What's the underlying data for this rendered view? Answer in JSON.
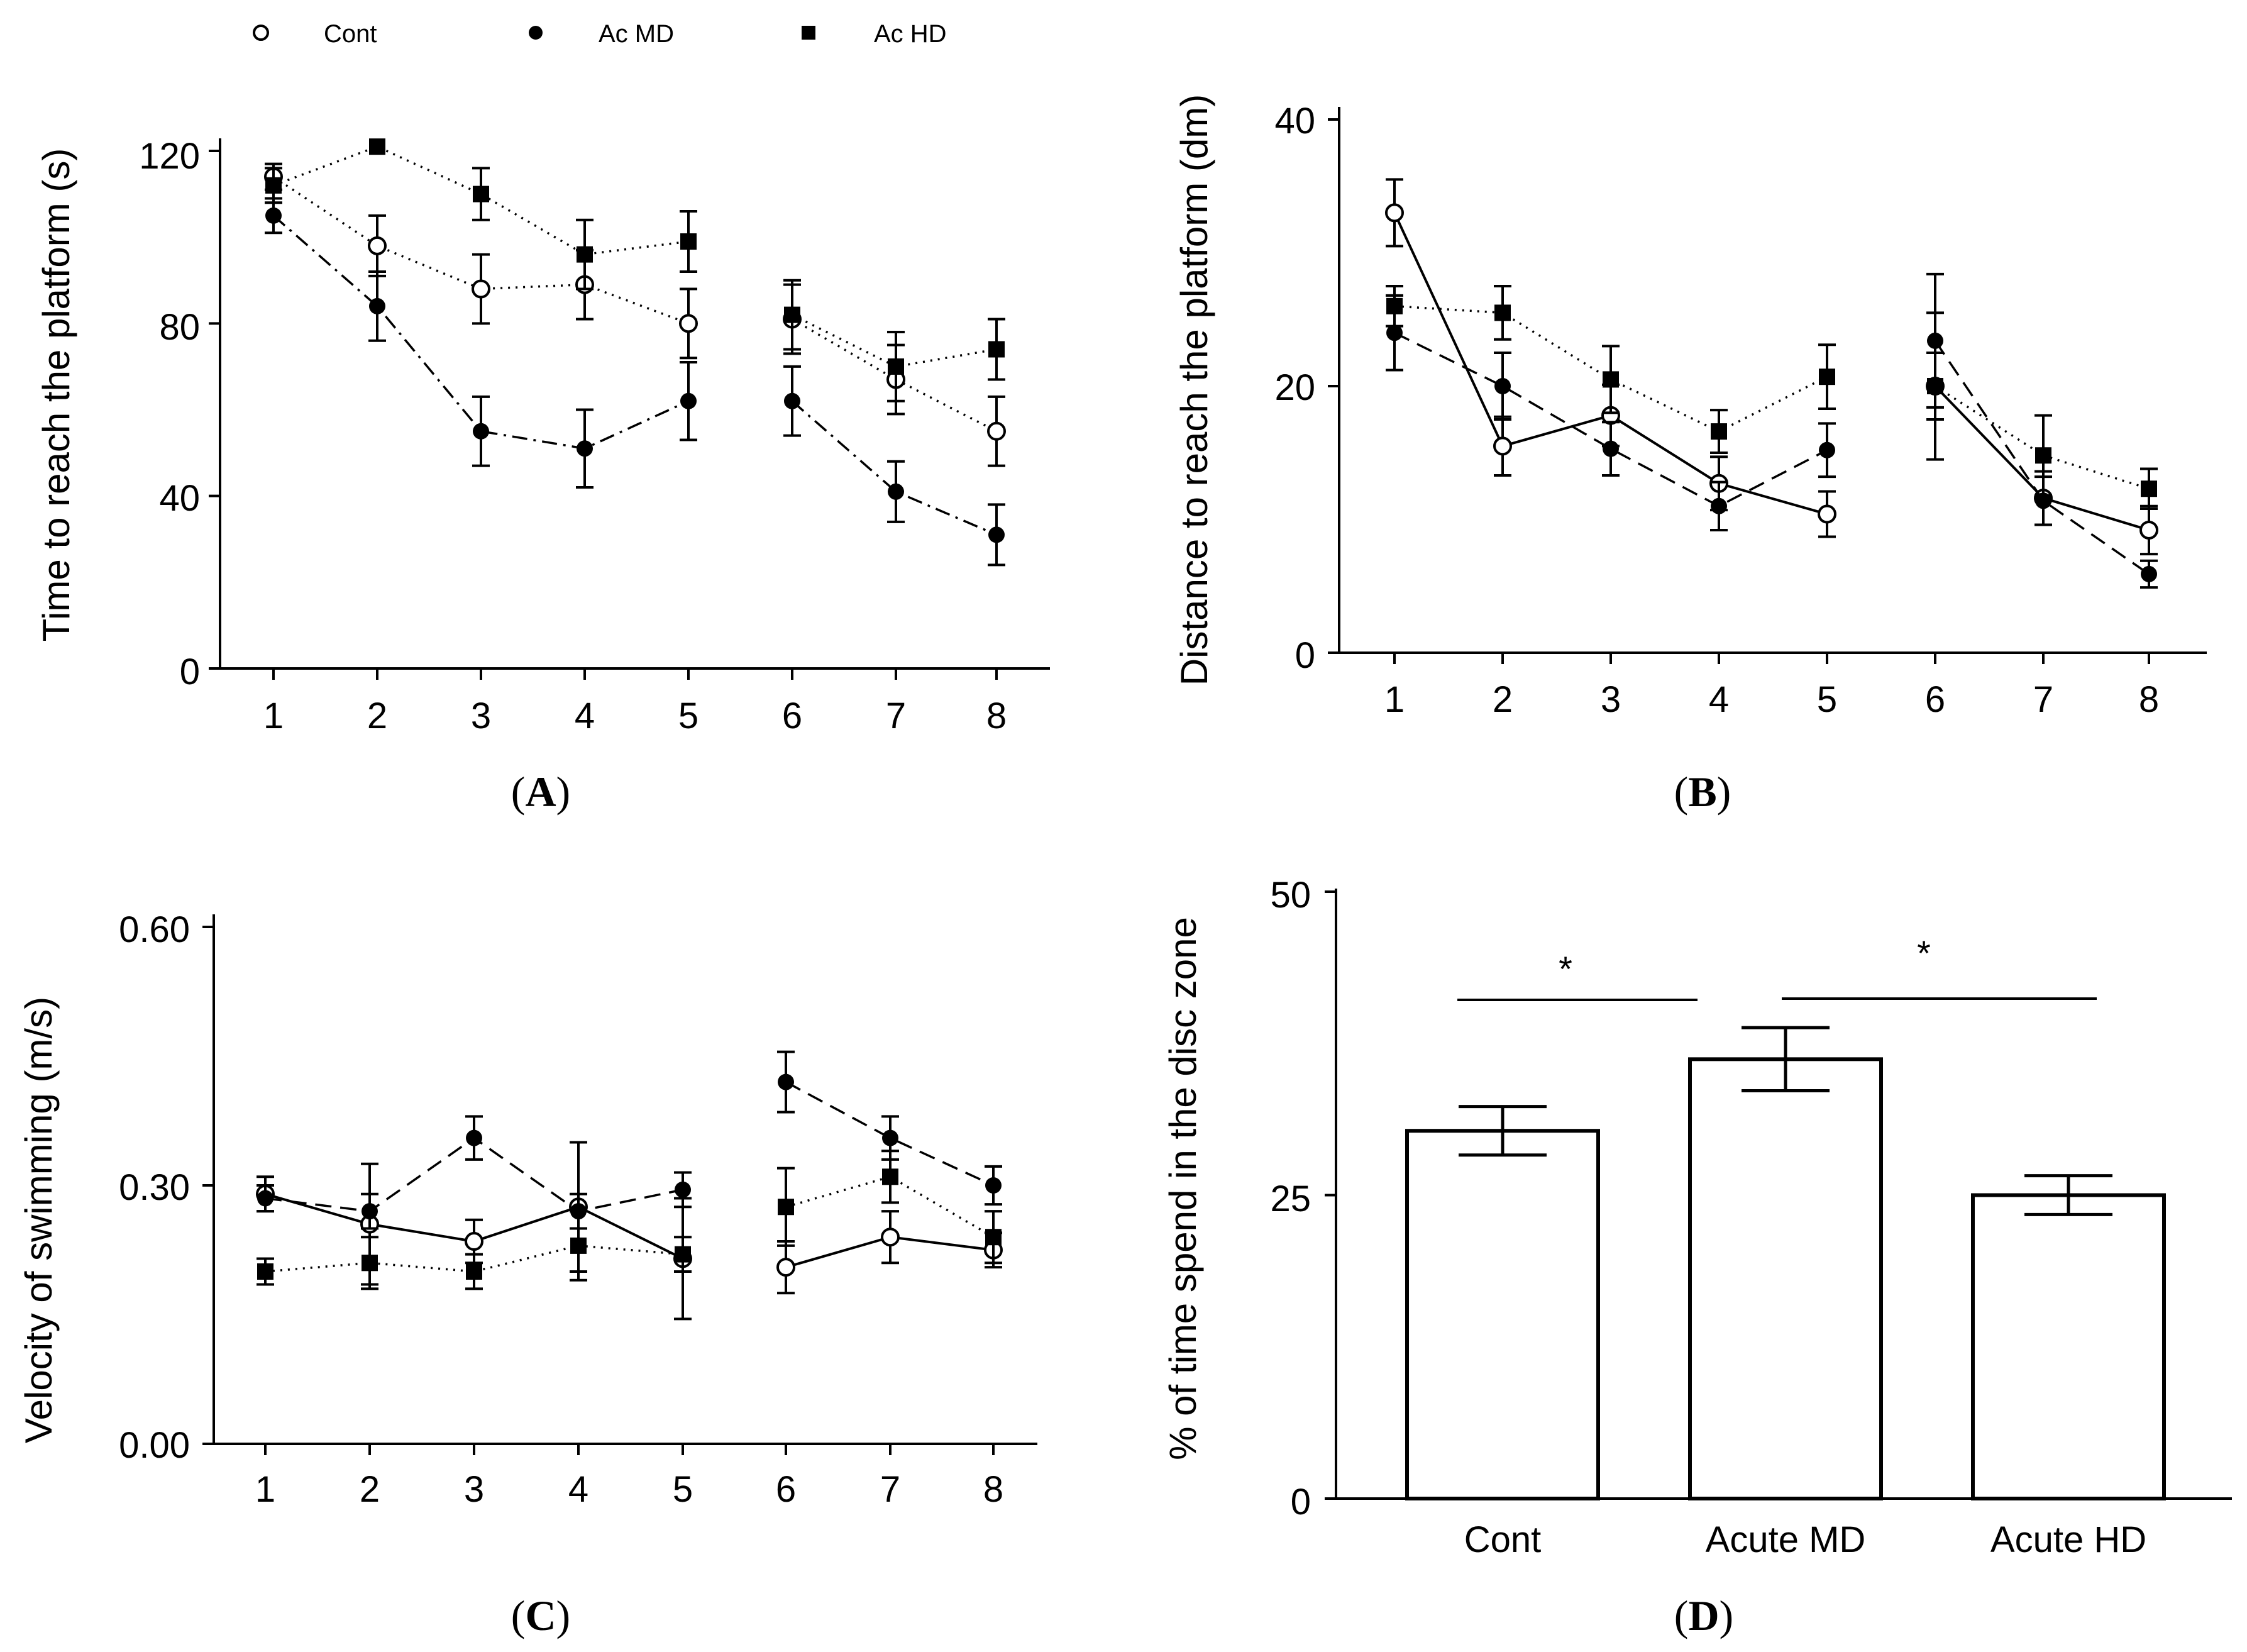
{
  "legend": [
    {
      "label": "Cont",
      "marker": "open-circle"
    },
    {
      "label": "Ac MD",
      "marker": "filled-circle"
    },
    {
      "label": "Ac HD",
      "marker": "filled-square"
    }
  ],
  "panel_labels": {
    "A": {
      "open": "(",
      "letter": "A",
      "close": ")"
    },
    "B": {
      "open": "(",
      "letter": "B",
      "close": ")"
    },
    "C": {
      "open": "(",
      "letter": "C",
      "close": ")"
    },
    "D": {
      "open": "(",
      "letter": "D",
      "close": ")"
    }
  },
  "chart_data": [
    {
      "panel": "A",
      "type": "line",
      "ylabel": "Time to reach the platform (s)",
      "xlabel": "",
      "ylim": [
        0,
        120
      ],
      "yticks": [
        "0",
        "40",
        "80",
        "120"
      ],
      "x": [
        "1",
        "2",
        "3",
        "4",
        "5",
        "6",
        "7",
        "8"
      ],
      "series": [
        {
          "name": "Cont",
          "marker": "open-circle",
          "line": "dotted",
          "values": [
            114,
            98,
            88,
            89,
            80,
            81,
            67,
            55
          ],
          "errors": [
            3,
            7,
            8,
            8,
            8,
            8,
            8,
            8
          ]
        },
        {
          "name": "Ac MD",
          "marker": "filled-circle",
          "line": "dashdot",
          "values": [
            105,
            84,
            55,
            51,
            62,
            62,
            41,
            31
          ],
          "errors": [
            4,
            8,
            8,
            9,
            9,
            8,
            7,
            7
          ]
        },
        {
          "name": "Ac HD",
          "marker": "filled-square",
          "line": "dotted",
          "values": [
            112,
            121,
            110,
            96,
            99,
            82,
            70,
            74
          ],
          "errors": [
            4,
            0,
            6,
            8,
            7,
            8,
            8,
            7
          ]
        }
      ]
    },
    {
      "panel": "B",
      "type": "line",
      "ylabel": "Distance to reach the platform (dm)",
      "xlabel": "",
      "ylim": [
        0,
        40
      ],
      "yticks": [
        "0",
        "20",
        "40"
      ],
      "x": [
        "1",
        "2",
        "3",
        "4",
        "5",
        "6",
        "7",
        "8"
      ],
      "series": [
        {
          "name": "Cont",
          "marker": "open-circle",
          "line": "solid",
          "values": [
            33,
            15.5,
            17.8,
            12.7,
            10.4,
            20,
            11.6,
            9.2
          ],
          "errors": [
            2.5,
            2.2,
            2.3,
            2,
            1.7,
            5.5,
            2,
            1.8
          ]
        },
        {
          "name": "Ac MD",
          "marker": "filled-circle",
          "line": "dashed",
          "values": [
            24,
            20,
            15.3,
            11,
            15.2,
            23.4,
            11.4,
            5.9
          ],
          "errors": [
            2.8,
            2.5,
            2,
            1.8,
            2,
            5,
            1.8,
            1
          ]
        },
        {
          "name": "Ac HD",
          "marker": "filled-square",
          "line": "dotted",
          "values": [
            26,
            25.5,
            20.5,
            16.6,
            20.7,
            20,
            14.8,
            12.3
          ],
          "errors": [
            1.5,
            2,
            2.5,
            1.6,
            2.4,
            2.5,
            3,
            1.5
          ]
        }
      ]
    },
    {
      "panel": "C",
      "type": "line",
      "ylabel": "Velocity of swimming (m/s)",
      "xlabel": "",
      "ylim": [
        0,
        0.6
      ],
      "yticks": [
        "0.00",
        "0.30",
        "0.60"
      ],
      "x": [
        "1",
        "2",
        "3",
        "4",
        "5",
        "6",
        "7",
        "8"
      ],
      "series": [
        {
          "name": "Cont",
          "marker": "open-circle",
          "line": "solid",
          "values": [
            0.29,
            0.255,
            0.235,
            0.275,
            0.215,
            0.205,
            0.24,
            0.225
          ],
          "errors": [
            0.02,
            0.07,
            0.025,
            0.075,
            0.07,
            0.03,
            0.03,
            0.02
          ]
        },
        {
          "name": "Ac MD",
          "marker": "filled-circle",
          "line": "dashed",
          "values": [
            0.285,
            0.27,
            0.355,
            0.27,
            0.295,
            0.42,
            0.355,
            0.3
          ],
          "errors": [
            0.015,
            0.02,
            0.025,
            0.02,
            0.02,
            0.035,
            0.025,
            0.022
          ]
        },
        {
          "name": "Ac HD",
          "marker": "filled-square",
          "line": "dotted",
          "values": [
            0.2,
            0.21,
            0.2,
            0.23,
            0.22,
            0.275,
            0.31,
            0.24
          ],
          "errors": [
            0.015,
            0.03,
            0.02,
            0.04,
            0.02,
            0.045,
            0.03,
            0.03
          ]
        }
      ]
    },
    {
      "panel": "D",
      "type": "bar",
      "ylabel": "% of time spend in the disc zone",
      "xlabel": "",
      "ylim": [
        0,
        50
      ],
      "yticks": [
        "0",
        "25",
        "50"
      ],
      "categories": [
        "Cont",
        "Acute MD",
        "Acute HD"
      ],
      "values": [
        30.3,
        36.2,
        25
      ],
      "errors": [
        2,
        2.6,
        1.6
      ],
      "significance": [
        {
          "from": "Cont",
          "to": "Acute MD",
          "label": "*"
        },
        {
          "from": "Acute MD",
          "to": "Acute HD",
          "label": "*"
        }
      ]
    }
  ]
}
